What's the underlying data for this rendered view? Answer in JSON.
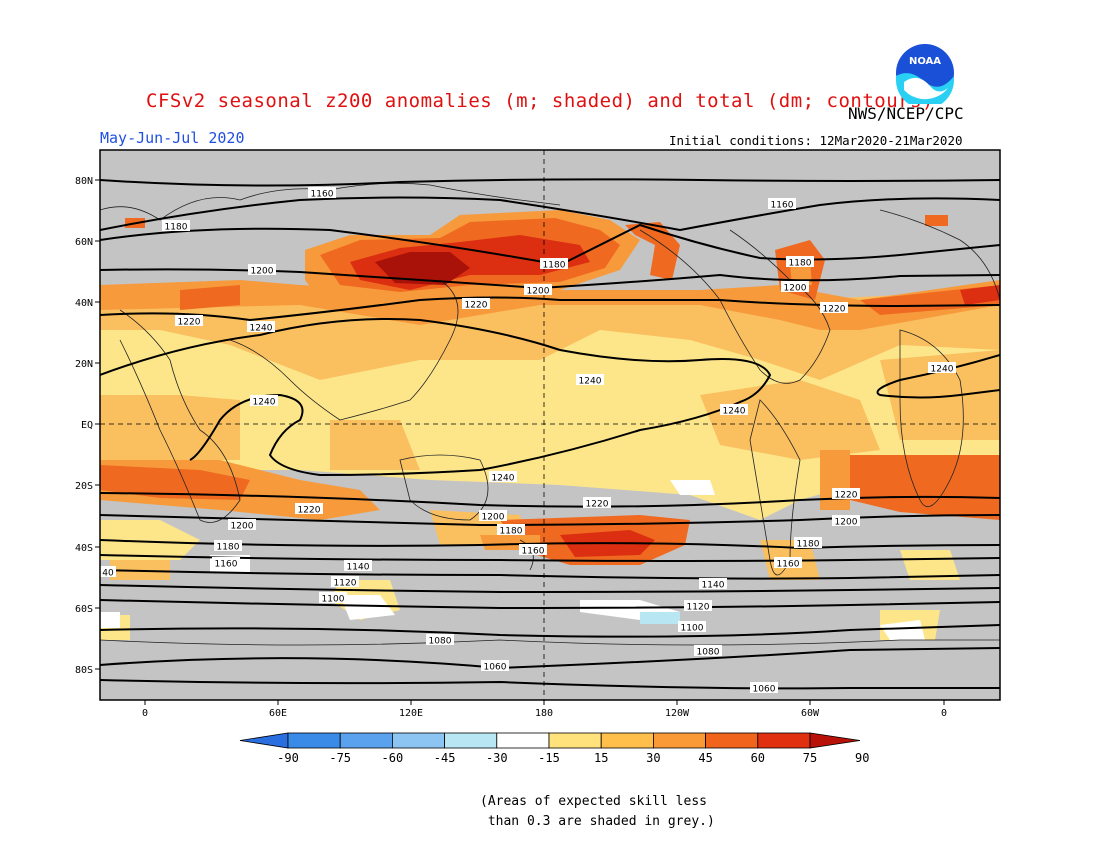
{
  "header": {
    "title": "CFSv2 seasonal z200 anomalies (m; shaded) and total (dm; contours)",
    "agency": "NWS/NCEP/CPC",
    "season": "May-Jun-Jul 2020",
    "initial_conditions": "Initial conditions: 12Mar2020-21Mar2020",
    "logo_text": "NOAA"
  },
  "map": {
    "lat_labels": [
      "80N",
      "60N",
      "40N",
      "20N",
      "EQ",
      "20S",
      "40S",
      "60S",
      "80S"
    ],
    "lon_labels": [
      "0",
      "60E",
      "120E",
      "180",
      "120W",
      "60W",
      "0"
    ],
    "contour_labels": [
      {
        "text": "1160",
        "key": "c1"
      },
      {
        "text": "1180",
        "key": "c2"
      },
      {
        "text": "1200",
        "key": "c3"
      },
      {
        "text": "1220",
        "key": "c4"
      },
      {
        "text": "1240",
        "key": "c5"
      },
      {
        "text": "1180",
        "key": "c6"
      },
      {
        "text": "1200",
        "key": "c7"
      },
      {
        "text": "1220",
        "key": "c8"
      },
      {
        "text": "1160",
        "key": "c9"
      },
      {
        "text": "1180",
        "key": "c10"
      },
      {
        "text": "1200",
        "key": "c11"
      },
      {
        "text": "1220",
        "key": "c12"
      },
      {
        "text": "1240",
        "key": "c13"
      },
      {
        "text": "1240",
        "key": "c14"
      },
      {
        "text": "1240",
        "key": "c15"
      },
      {
        "text": "1240",
        "key": "c16"
      },
      {
        "text": "1240",
        "key": "c17"
      },
      {
        "text": "1220",
        "key": "c18"
      },
      {
        "text": "1220",
        "key": "c19"
      },
      {
        "text": "1220",
        "key": "c20"
      },
      {
        "text": "1200",
        "key": "c21"
      },
      {
        "text": "1200",
        "key": "c22"
      },
      {
        "text": "1200",
        "key": "c23"
      },
      {
        "text": "1180",
        "key": "c24"
      },
      {
        "text": "1160",
        "key": "c25"
      },
      {
        "text": "1180",
        "key": "c26"
      },
      {
        "text": "1160",
        "key": "c27"
      },
      {
        "text": "1180",
        "key": "c28"
      },
      {
        "text": "1160",
        "key": "c29"
      },
      {
        "text": "40",
        "key": "c30"
      },
      {
        "text": "1140",
        "key": "c31"
      },
      {
        "text": "1120",
        "key": "c32"
      },
      {
        "text": "1100",
        "key": "c33"
      },
      {
        "text": "1140",
        "key": "c34"
      },
      {
        "text": "1120",
        "key": "c35"
      },
      {
        "text": "1100",
        "key": "c36"
      },
      {
        "text": "1080",
        "key": "c37"
      },
      {
        "text": "1080",
        "key": "c38"
      },
      {
        "text": "1060",
        "key": "c39"
      },
      {
        "text": "1060",
        "key": "c40"
      }
    ]
  },
  "colorbar": {
    "labels": [
      "-90",
      "-75",
      "-60",
      "-45",
      "-30",
      "-15",
      "15",
      "30",
      "45",
      "60",
      "75",
      "90"
    ],
    "colors": [
      "#2a6ee0",
      "#3a8ae8",
      "#5aa2ee",
      "#8cc4f2",
      "#b8e6f2",
      "#ffffff",
      "#ffe27c",
      "#ffbf4a",
      "#f99a36",
      "#f0641c",
      "#e03010",
      "#b81208"
    ]
  },
  "legend_note": "(Areas of expected skill less\n than 0.3 are shaded in grey.)",
  "palette": {
    "grey": "#c4c4c4",
    "light_yellow": "#fde68a",
    "yellow": "#fcd68a",
    "orange_light": "#fac060",
    "orange": "#f79a3c",
    "red_orange": "#ef6a20",
    "red": "#dc2e10",
    "dark_red": "#a81208"
  }
}
